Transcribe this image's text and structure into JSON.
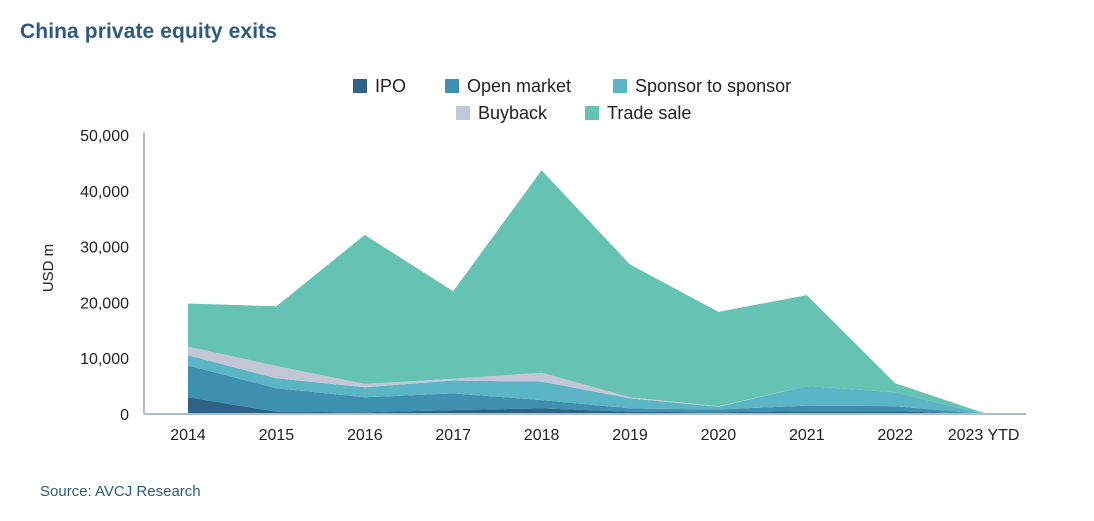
{
  "title": "China private equity exits",
  "source": "Source: AVCJ Research",
  "chart_data": {
    "type": "area",
    "stacked": true,
    "categories": [
      "2014",
      "2015",
      "2016",
      "2017",
      "2018",
      "2019",
      "2020",
      "2021",
      "2022",
      "2023 YTD"
    ],
    "ylabel": "USD m",
    "ylim": [
      0,
      50000
    ],
    "yticks": [
      "0",
      "10,000",
      "20,000",
      "30,000",
      "40,000",
      "50,000"
    ],
    "grid": false,
    "legend_position": "top-center",
    "series": [
      {
        "name": "IPO",
        "color": "#2e6286",
        "values": [
          3000,
          400,
          300,
          700,
          1000,
          400,
          300,
          500,
          500,
          0
        ]
      },
      {
        "name": "Open market",
        "color": "#3e8fb0",
        "values": [
          5700,
          4200,
          2700,
          3000,
          1500,
          600,
          500,
          1000,
          900,
          0
        ]
      },
      {
        "name": "Sponsor to sponsor",
        "color": "#5cb5c5",
        "values": [
          1800,
          1800,
          1800,
          2300,
          3300,
          1800,
          500,
          3500,
          2500,
          0
        ]
      },
      {
        "name": "Buyback",
        "color": "#c3c6d6",
        "values": [
          1600,
          2200,
          600,
          300,
          1600,
          200,
          100,
          0,
          0,
          0
        ]
      },
      {
        "name": "Trade sale",
        "color": "#66c2b3",
        "values": [
          7700,
          10700,
          26700,
          15700,
          36300,
          23800,
          16900,
          16300,
          1600,
          200
        ]
      }
    ]
  }
}
